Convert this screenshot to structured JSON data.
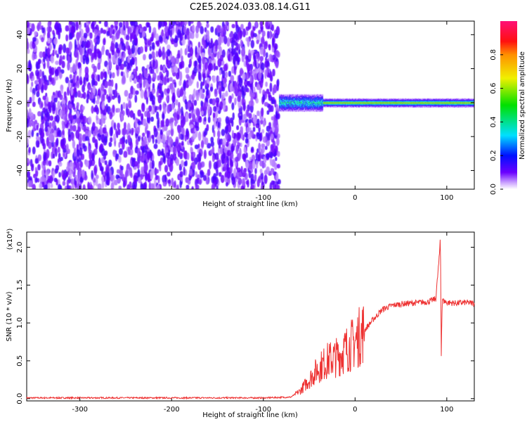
{
  "chart_data": [
    {
      "type": "heatmap",
      "title": "C2E5.2024.033.08.14.G11",
      "xlabel": "Height of straight line (km)",
      "ylabel": "Frequency (Hz)",
      "xlim": [
        -358,
        130
      ],
      "ylim": [
        -51,
        48
      ],
      "xticks": [
        -300,
        -200,
        -100,
        0,
        100
      ],
      "xtick_labels": [
        "-300",
        "-200",
        "-100",
        "0",
        "100"
      ],
      "yticks": [
        40,
        20,
        0,
        -20,
        -40
      ],
      "ytick_labels": [
        "40",
        "20",
        "0",
        "-20",
        "-40"
      ],
      "noise_region_xmax": -83,
      "signal_line_frequency": 0,
      "colorbar": {
        "label": "Normalized spectral amplitude",
        "range": [
          0,
          1
        ],
        "ticks": [
          0.0,
          0.2,
          0.4,
          0.6,
          0.8
        ],
        "tick_labels": [
          "0.0",
          "0.2",
          "0.4",
          "0.6",
          "0.8"
        ]
      }
    },
    {
      "type": "line",
      "xlabel": "Height of straight line (km)",
      "ylabel": "SNR (10 * v/v)",
      "y_multiplier": "(x10⁴)",
      "xlim": [
        -358,
        130
      ],
      "ylim": [
        -0.03,
        2.2
      ],
      "xticks": [
        -300,
        -200,
        -100,
        0,
        100
      ],
      "xtick_labels": [
        "-300",
        "-200",
        "-100",
        "0",
        "100"
      ],
      "yticks": [
        0,
        0.5,
        1.0,
        1.5,
        2.0
      ],
      "ytick_labels": [
        "0.0",
        "0.5",
        "1.0",
        "1.5",
        "2.0"
      ],
      "color": "#ee3333",
      "x": [
        -358,
        -300,
        -200,
        -100,
        -70,
        -60,
        -50,
        -40,
        -30,
        -20,
        -10,
        0,
        10,
        20,
        30,
        40,
        50,
        60,
        70,
        80,
        88,
        92,
        93,
        94,
        95,
        100,
        110,
        120,
        130
      ],
      "y": [
        0.01,
        0.01,
        0.01,
        0.01,
        0.02,
        0.1,
        0.25,
        0.4,
        0.5,
        0.55,
        0.65,
        0.75,
        0.9,
        1.05,
        1.18,
        1.23,
        1.25,
        1.26,
        1.27,
        1.28,
        1.32,
        1.9,
        2.15,
        0.6,
        1.3,
        1.27,
        1.26,
        1.27,
        1.26
      ]
    }
  ]
}
